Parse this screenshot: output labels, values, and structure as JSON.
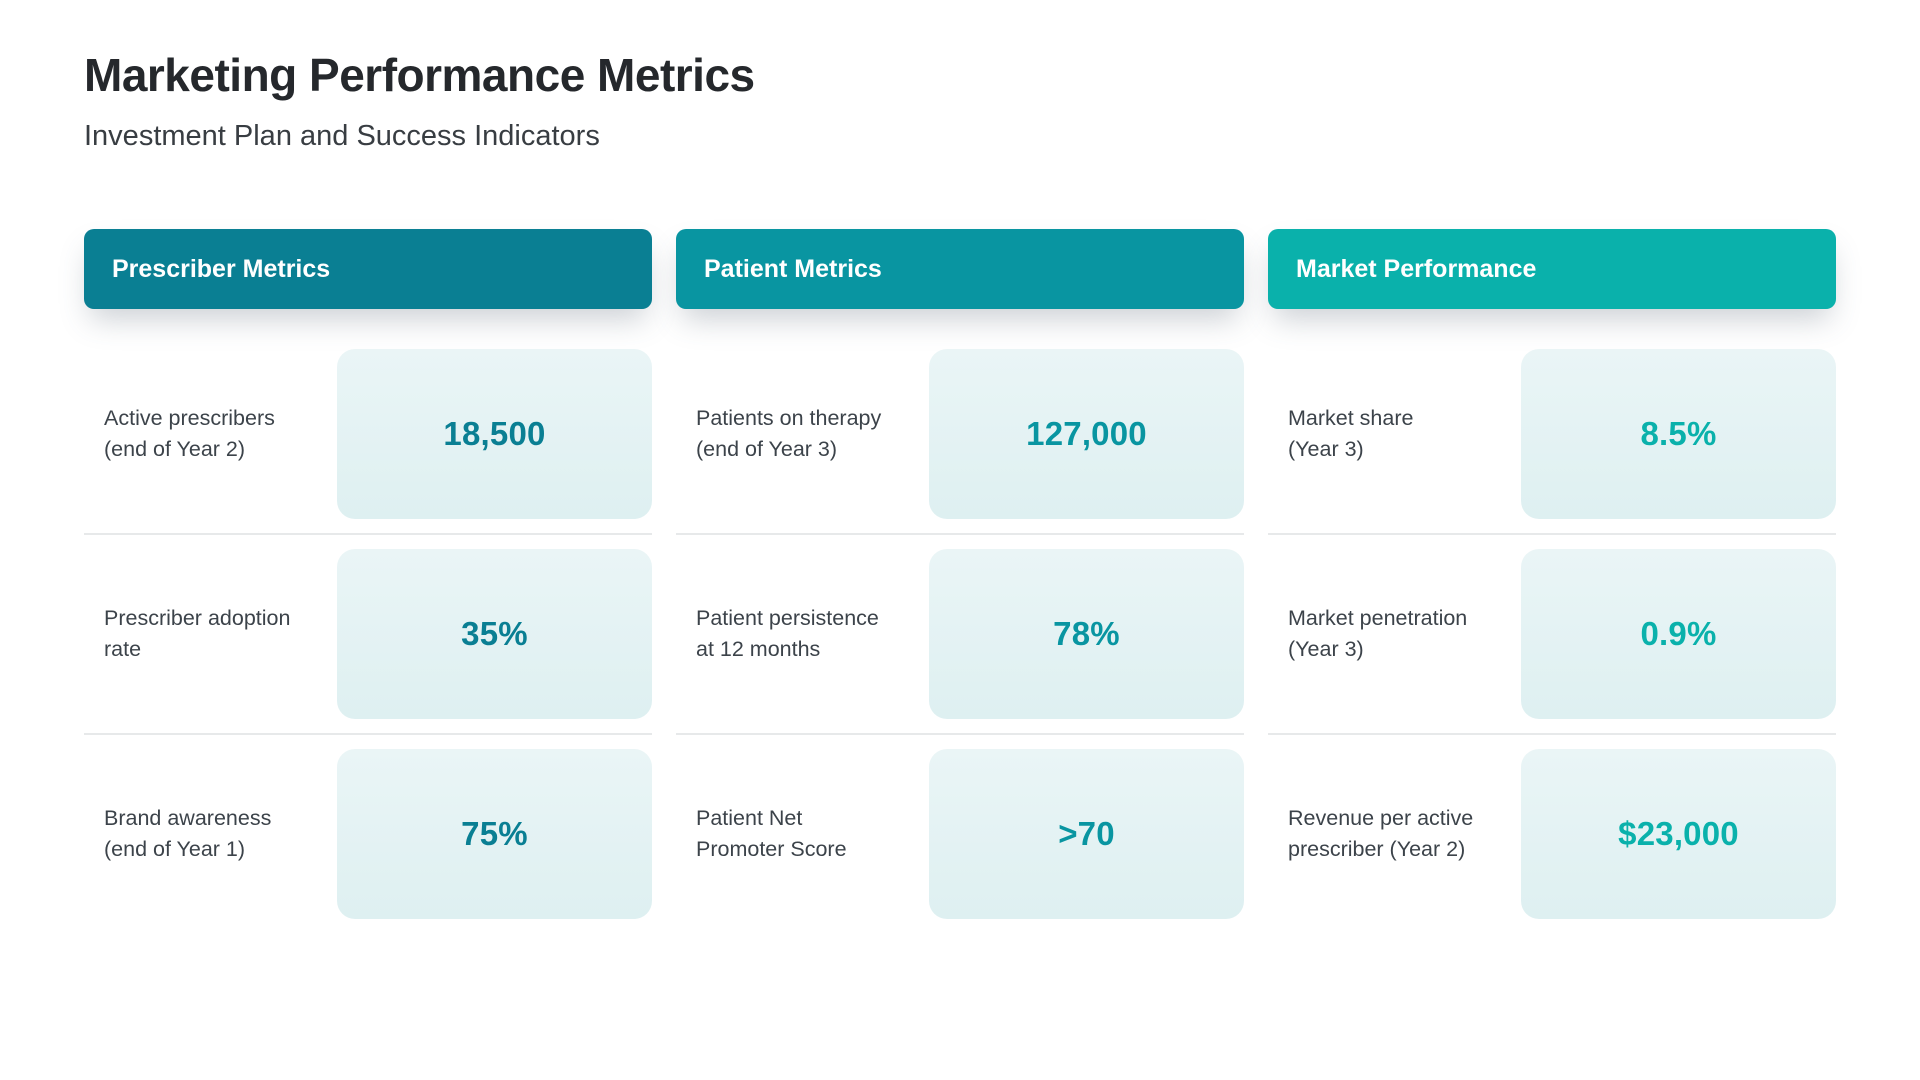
{
  "header": {
    "title": "Marketing Performance Metrics",
    "subtitle": "Investment Plan and Success Indicators"
  },
  "theme": {
    "card_background": "#E3F1F3",
    "divider": "#E7E9EA",
    "title_color": "#25282C",
    "subtitle_color": "#383D42",
    "label_color": "#3C434A",
    "header_text_color": "#FFFFFF"
  },
  "columns": [
    {
      "title": "Prescriber Metrics",
      "accent": "#0A7F93",
      "rows": [
        {
          "label": "Active prescribers\n(end of Year 2)",
          "value": "18,500"
        },
        {
          "label": "Prescriber adoption\nrate",
          "value": "35%"
        },
        {
          "label": "Brand awareness\n(end of Year 1)",
          "value": "75%"
        }
      ]
    },
    {
      "title": "Patient Metrics",
      "accent": "#0995A1",
      "rows": [
        {
          "label": "Patients on therapy\n(end of Year 3)",
          "value": "127,000"
        },
        {
          "label": "Patient persistence\nat 12 months",
          "value": "78%"
        },
        {
          "label": "Patient Net\nPromoter Score",
          "value": ">70"
        }
      ]
    },
    {
      "title": "Market Performance",
      "accent": "#0AB1AB",
      "rows": [
        {
          "label": "Market share\n(Year 3)",
          "value": "8.5%"
        },
        {
          "label": "Market penetration\n(Year 3)",
          "value": "0.9%"
        },
        {
          "label": "Revenue per active\nprescriber (Year 2)",
          "value": "$23,000"
        }
      ]
    }
  ],
  "chart_data": {
    "type": "table",
    "title": "Marketing Performance Metrics",
    "subtitle": "Investment Plan and Success Indicators",
    "groups": [
      {
        "name": "Prescriber Metrics",
        "metrics": [
          {
            "label": "Active prescribers (end of Year 2)",
            "value": "18,500"
          },
          {
            "label": "Prescriber adoption rate",
            "value": "35%"
          },
          {
            "label": "Brand awareness (end of Year 1)",
            "value": "75%"
          }
        ]
      },
      {
        "name": "Patient Metrics",
        "metrics": [
          {
            "label": "Patients on therapy (end of Year 3)",
            "value": "127,000"
          },
          {
            "label": "Patient persistence at 12 months",
            "value": "78%"
          },
          {
            "label": "Patient Net Promoter Score",
            "value": ">70"
          }
        ]
      },
      {
        "name": "Market Performance",
        "metrics": [
          {
            "label": "Market share (Year 3)",
            "value": "8.5%"
          },
          {
            "label": "Market penetration (Year 3)",
            "value": "0.9%"
          },
          {
            "label": "Revenue per active prescriber (Year 2)",
            "value": "$23,000"
          }
        ]
      }
    ]
  }
}
